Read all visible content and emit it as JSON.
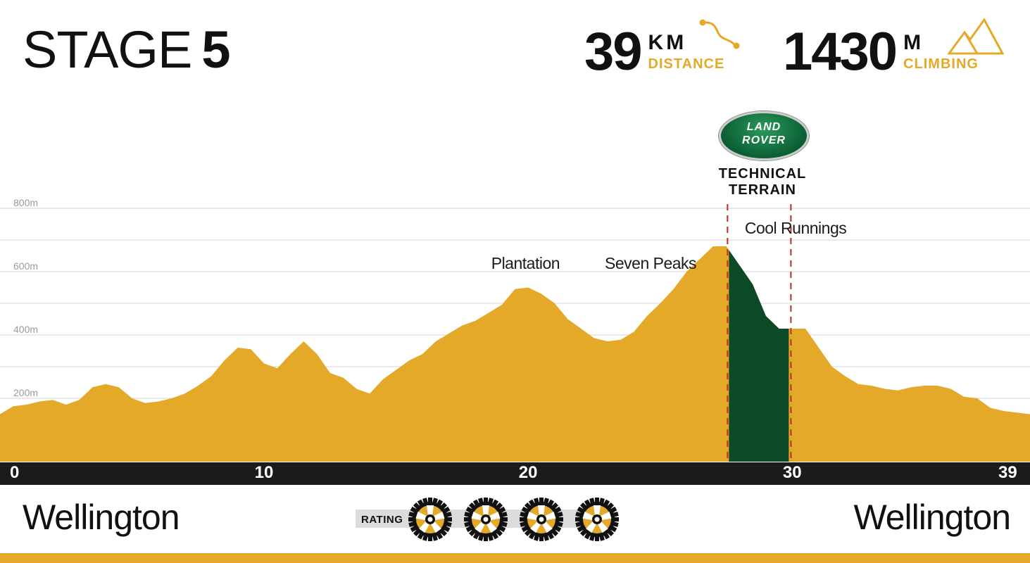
{
  "header": {
    "stage_word": "STAGE",
    "stage_number": "5",
    "distance_value": "39",
    "distance_unit": "KM",
    "distance_label": "DISTANCE",
    "climb_value": "1430",
    "climb_unit": "M",
    "climb_label": "CLIMBING"
  },
  "sponsor": {
    "logo_line1": "LAND",
    "logo_line2": "ROVER",
    "section_line1": "TECHNICAL",
    "section_line2": "TERRAIN"
  },
  "footer": {
    "start_city": "Wellington",
    "end_city": "Wellington",
    "rating_label": "RATING",
    "rating_value": 4
  },
  "colors": {
    "profile_fill": "#e4a928",
    "technical_fill": "#0b4a26",
    "marker_line": "#c62828",
    "grid": "#d6d6d6",
    "axis_bar": "#1b1b1b"
  },
  "chart_data": {
    "type": "area",
    "title": "",
    "xlabel": "",
    "ylabel": "",
    "xlim": [
      0,
      39
    ],
    "ylim": [
      0,
      800
    ],
    "x_ticks": [
      "0",
      "10",
      "20",
      "30",
      "39"
    ],
    "y_ticks": [
      "200m",
      "400m",
      "600m",
      "800m"
    ],
    "grid": true,
    "series": [
      {
        "x": [
          0,
          0.5,
          1,
          1.5,
          2,
          2.5,
          3,
          3.5,
          4,
          4.5,
          5,
          5.5,
          6,
          6.5,
          7,
          7.5,
          8,
          8.5,
          9,
          9.5,
          10,
          10.5,
          11,
          11.5,
          12,
          12.5,
          13,
          13.5,
          14,
          14.5,
          15,
          15.5,
          16,
          16.5,
          17,
          17.5,
          18,
          18.5,
          19,
          19.5,
          20,
          20.5,
          21,
          21.5,
          22,
          22.5,
          23,
          23.5,
          24,
          24.5,
          25,
          25.5,
          26,
          26.5,
          27,
          27.5,
          28,
          28.5,
          29,
          29.5,
          30,
          30.5,
          31,
          31.5,
          32,
          32.5,
          33,
          33.5,
          34,
          34.5,
          35,
          35.5,
          36,
          36.5,
          37,
          37.5,
          38,
          38.5,
          39
        ],
        "y": [
          150,
          175,
          180,
          190,
          195,
          180,
          195,
          235,
          245,
          235,
          200,
          185,
          190,
          200,
          215,
          240,
          270,
          320,
          360,
          355,
          310,
          295,
          340,
          380,
          340,
          280,
          265,
          230,
          215,
          260,
          290,
          320,
          340,
          380,
          405,
          430,
          445,
          470,
          495,
          545,
          550,
          530,
          500,
          450,
          420,
          390,
          380,
          385,
          410,
          460,
          500,
          545,
          600,
          640,
          680,
          680,
          620,
          560,
          460,
          420,
          420,
          420,
          360,
          300,
          270,
          245,
          240,
          230,
          225,
          235,
          240,
          240,
          230,
          205,
          200,
          170,
          160,
          155,
          150
        ]
      }
    ],
    "highlight_region": {
      "x_start": 27.6,
      "x_end": 30,
      "label": "TECHNICAL TERRAIN"
    },
    "annotations": [
      {
        "text": "Plantation",
        "x": 18.6,
        "y": 625
      },
      {
        "text": "Seven Peaks",
        "x": 22.9,
        "y": 625
      },
      {
        "text": "Cool Runnings",
        "x": 28.2,
        "y": 735
      }
    ]
  }
}
